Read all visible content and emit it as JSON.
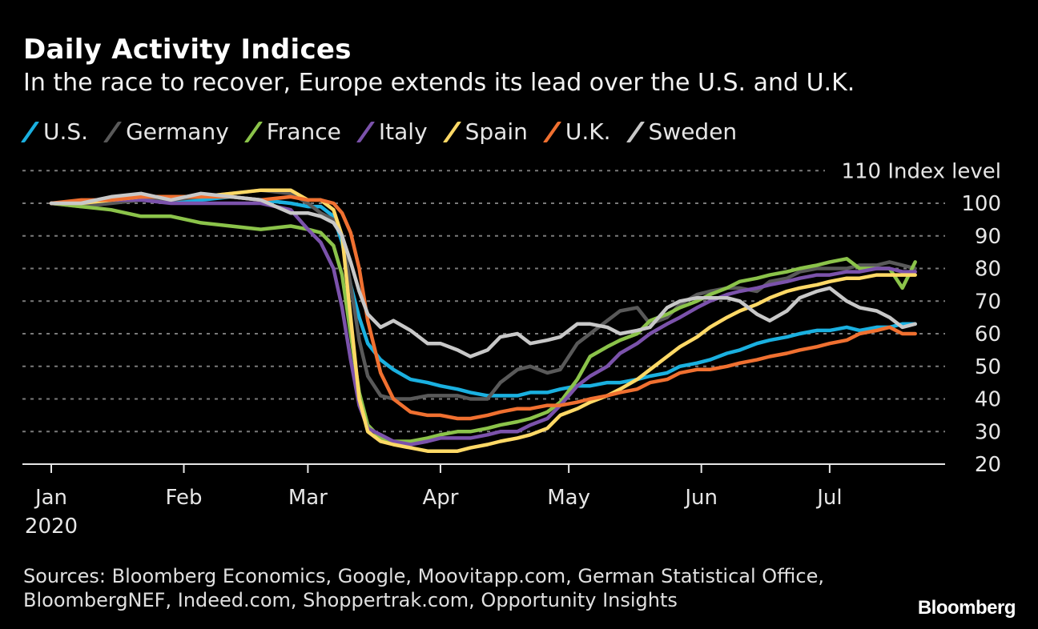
{
  "header": {
    "title": "Daily Activity Indices",
    "subtitle": "In the race to recover, Europe extends its lead over the U.S. and U.K."
  },
  "footer": {
    "sources_line1": "Sources: Bloomberg Economics, Google, Moovitapp.com, German Statistical Office,",
    "sources_line2": "BloombergNEF, Indeed.com, Shoppertrak.com, Opportunity Insights",
    "brand": "Bloomberg"
  },
  "chart_data": {
    "type": "line",
    "title": "Daily Activity Indices",
    "subtitle": "In the race to recover, Europe extends its lead over the U.S. and U.K.",
    "xlabel": "",
    "ylabel": "Index level",
    "ylim": [
      20,
      110
    ],
    "yticks": [
      20,
      30,
      40,
      50,
      60,
      70,
      80,
      90,
      100,
      110
    ],
    "ytick_labels": [
      "20",
      "30",
      "40",
      "50",
      "60",
      "70",
      "80",
      "90",
      "100",
      "110 Index level"
    ],
    "xlim_days": [
      0,
      210
    ],
    "xticks": [
      {
        "label": "Jan",
        "day": 0
      },
      {
        "label": "Feb",
        "day": 31
      },
      {
        "label": "Mar",
        "day": 60
      },
      {
        "label": "Apr",
        "day": 91
      },
      {
        "label": "May",
        "day": 121
      },
      {
        "label": "Jun",
        "day": 152
      },
      {
        "label": "Jul",
        "day": 182
      }
    ],
    "year_label": "2020",
    "grid": "horizontal-dotted",
    "legend_position": "top-left",
    "x_days": [
      0,
      7,
      14,
      21,
      28,
      35,
      42,
      49,
      56,
      60,
      63,
      66,
      68,
      70,
      72,
      74,
      77,
      80,
      84,
      88,
      91,
      95,
      98,
      102,
      105,
      109,
      112,
      116,
      119,
      123,
      126,
      130,
      133,
      137,
      140,
      144,
      147,
      151,
      154,
      158,
      161,
      165,
      168,
      172,
      175,
      179,
      182,
      186,
      189,
      193,
      196,
      199,
      202
    ],
    "series": [
      {
        "name": "U.S.",
        "color": "#1ab0e0",
        "values": [
          100,
          100,
          101,
          101,
          101,
          101,
          102,
          101,
          100,
          99,
          99,
          96,
          88,
          75,
          65,
          57,
          52,
          49,
          46,
          45,
          44,
          43,
          42,
          41,
          41,
          41,
          42,
          42,
          43,
          44,
          44,
          45,
          45,
          46,
          47,
          48,
          50,
          51,
          52,
          54,
          55,
          57,
          58,
          59,
          60,
          61,
          61,
          62,
          61,
          62,
          62,
          63,
          63
        ]
      },
      {
        "name": "Germany",
        "color": "#595959",
        "values": [
          100,
          99,
          100,
          101,
          101,
          102,
          103,
          104,
          103,
          100,
          97,
          95,
          90,
          75,
          58,
          47,
          41,
          40,
          40,
          41,
          41,
          41,
          40,
          40,
          45,
          49,
          50,
          48,
          49,
          57,
          60,
          64,
          67,
          68,
          63,
          65,
          69,
          72,
          73,
          74,
          74,
          73,
          76,
          77,
          79,
          80,
          80,
          80,
          81,
          81,
          82,
          81,
          80
        ]
      },
      {
        "name": "France",
        "color": "#8bc34a",
        "values": [
          100,
          99,
          98,
          96,
          96,
          94,
          93,
          92,
          93,
          92,
          91,
          87,
          78,
          60,
          42,
          32,
          28,
          27,
          27,
          28,
          29,
          30,
          30,
          31,
          32,
          33,
          34,
          36,
          39,
          46,
          53,
          56,
          58,
          60,
          64,
          66,
          68,
          70,
          72,
          74,
          76,
          77,
          78,
          79,
          80,
          81,
          82,
          83,
          80,
          80,
          80,
          74,
          82
        ]
      },
      {
        "name": "Italy",
        "color": "#7b52ab",
        "values": [
          100,
          100,
          101,
          101,
          100,
          100,
          100,
          100,
          98,
          92,
          88,
          80,
          68,
          52,
          38,
          31,
          29,
          27,
          26,
          27,
          28,
          28,
          28,
          29,
          30,
          30,
          32,
          34,
          38,
          44,
          47,
          50,
          54,
          57,
          60,
          63,
          65,
          68,
          70,
          72,
          73,
          74,
          75,
          76,
          77,
          78,
          78,
          79,
          79,
          80,
          80,
          79,
          79
        ]
      },
      {
        "name": "Spain",
        "color": "#ffd966",
        "values": [
          100,
          100,
          101,
          102,
          102,
          102,
          103,
          104,
          104,
          101,
          101,
          98,
          90,
          65,
          40,
          30,
          27,
          26,
          25,
          24,
          24,
          24,
          25,
          26,
          27,
          28,
          29,
          31,
          35,
          37,
          39,
          41,
          43,
          46,
          49,
          53,
          56,
          59,
          62,
          65,
          67,
          69,
          71,
          73,
          74,
          75,
          76,
          77,
          77,
          78,
          78,
          78,
          78
        ]
      },
      {
        "name": "U.K.",
        "color": "#f07030",
        "values": [
          100,
          101,
          101,
          102,
          102,
          102,
          102,
          101,
          102,
          101,
          101,
          100,
          97,
          91,
          80,
          64,
          48,
          40,
          36,
          35,
          35,
          34,
          34,
          35,
          36,
          37,
          37,
          38,
          38,
          39,
          40,
          41,
          42,
          43,
          45,
          46,
          48,
          49,
          49,
          50,
          51,
          52,
          53,
          54,
          55,
          56,
          57,
          58,
          60,
          61,
          62,
          60,
          60
        ]
      },
      {
        "name": "Sweden",
        "color": "#c8c8c8",
        "values": [
          100,
          100,
          102,
          103,
          101,
          103,
          102,
          101,
          97,
          97,
          96,
          94,
          90,
          82,
          73,
          66,
          62,
          64,
          61,
          57,
          57,
          55,
          53,
          55,
          59,
          60,
          57,
          58,
          59,
          63,
          63,
          62,
          60,
          61,
          62,
          68,
          70,
          71,
          71,
          71,
          70,
          66,
          64,
          67,
          71,
          73,
          74,
          70,
          68,
          67,
          65,
          62,
          63
        ]
      }
    ]
  }
}
